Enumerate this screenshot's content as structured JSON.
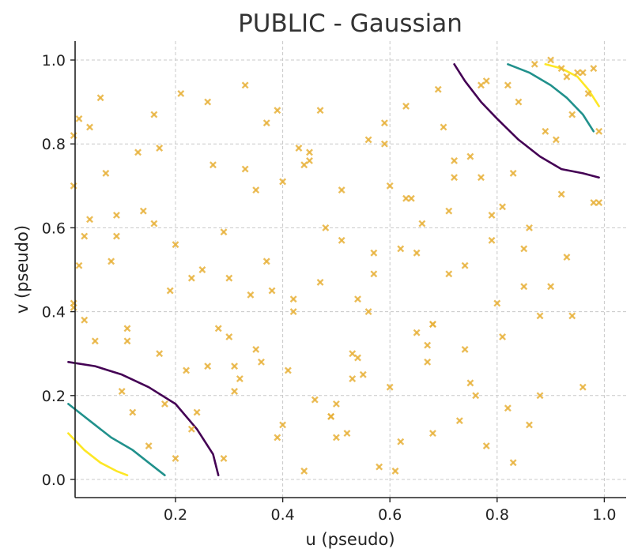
{
  "chart_data": {
    "type": "scatter",
    "title": "PUBLIC - Gaussian",
    "xlabel": "u (pseudo)",
    "ylabel": "v (pseudo)",
    "xlim": [
      0.0,
      1.05
    ],
    "ylim": [
      -0.04,
      1.05
    ],
    "xticks": [
      0.2,
      0.4,
      0.6,
      0.8,
      1.0
    ],
    "yticks": [
      0.0,
      0.2,
      0.4,
      0.6,
      0.8,
      1.0
    ],
    "grid": true,
    "marker_color": "#E8B23C",
    "series": [
      {
        "type": "scatter",
        "marker": "x",
        "points": [
          [
            0.01,
            0.82
          ],
          [
            0.01,
            0.7
          ],
          [
            0.01,
            0.41
          ],
          [
            0.01,
            0.42
          ],
          [
            0.02,
            0.86
          ],
          [
            0.02,
            0.51
          ],
          [
            0.03,
            0.58
          ],
          [
            0.03,
            0.38
          ],
          [
            0.04,
            0.84
          ],
          [
            0.04,
            0.62
          ],
          [
            0.05,
            0.33
          ],
          [
            0.06,
            0.91
          ],
          [
            0.07,
            0.73
          ],
          [
            0.08,
            0.52
          ],
          [
            0.09,
            0.63
          ],
          [
            0.09,
            0.58
          ],
          [
            0.1,
            0.21
          ],
          [
            0.11,
            0.36
          ],
          [
            0.11,
            0.33
          ],
          [
            0.12,
            0.16
          ],
          [
            0.13,
            0.78
          ],
          [
            0.14,
            0.64
          ],
          [
            0.15,
            0.08
          ],
          [
            0.16,
            0.87
          ],
          [
            0.16,
            0.61
          ],
          [
            0.17,
            0.79
          ],
          [
            0.17,
            0.3
          ],
          [
            0.18,
            0.18
          ],
          [
            0.19,
            0.45
          ],
          [
            0.2,
            0.56
          ],
          [
            0.2,
            0.05
          ],
          [
            0.21,
            0.92
          ],
          [
            0.22,
            0.26
          ],
          [
            0.23,
            0.12
          ],
          [
            0.23,
            0.48
          ],
          [
            0.24,
            0.16
          ],
          [
            0.25,
            0.5
          ],
          [
            0.26,
            0.27
          ],
          [
            0.26,
            0.9
          ],
          [
            0.27,
            0.75
          ],
          [
            0.28,
            0.36
          ],
          [
            0.29,
            0.05
          ],
          [
            0.29,
            0.59
          ],
          [
            0.3,
            0.48
          ],
          [
            0.3,
            0.34
          ],
          [
            0.31,
            0.21
          ],
          [
            0.31,
            0.27
          ],
          [
            0.32,
            0.24
          ],
          [
            0.33,
            0.94
          ],
          [
            0.33,
            0.74
          ],
          [
            0.34,
            0.44
          ],
          [
            0.35,
            0.69
          ],
          [
            0.35,
            0.31
          ],
          [
            0.36,
            0.28
          ],
          [
            0.37,
            0.52
          ],
          [
            0.37,
            0.85
          ],
          [
            0.38,
            0.45
          ],
          [
            0.39,
            0.88
          ],
          [
            0.39,
            0.1
          ],
          [
            0.4,
            0.71
          ],
          [
            0.4,
            0.13
          ],
          [
            0.41,
            0.26
          ],
          [
            0.42,
            0.43
          ],
          [
            0.42,
            0.4
          ],
          [
            0.43,
            0.79
          ],
          [
            0.44,
            0.02
          ],
          [
            0.44,
            0.75
          ],
          [
            0.45,
            0.78
          ],
          [
            0.45,
            0.76
          ],
          [
            0.46,
            0.19
          ],
          [
            0.47,
            0.88
          ],
          [
            0.47,
            0.47
          ],
          [
            0.48,
            0.6
          ],
          [
            0.49,
            0.15
          ],
          [
            0.49,
            0.15
          ],
          [
            0.5,
            0.18
          ],
          [
            0.5,
            0.1
          ],
          [
            0.51,
            0.57
          ],
          [
            0.51,
            0.69
          ],
          [
            0.52,
            0.11
          ],
          [
            0.53,
            0.24
          ],
          [
            0.53,
            0.3
          ],
          [
            0.54,
            0.43
          ],
          [
            0.54,
            0.29
          ],
          [
            0.55,
            0.25
          ],
          [
            0.56,
            0.81
          ],
          [
            0.56,
            0.4
          ],
          [
            0.57,
            0.54
          ],
          [
            0.57,
            0.49
          ],
          [
            0.58,
            0.03
          ],
          [
            0.59,
            0.85
          ],
          [
            0.59,
            0.8
          ],
          [
            0.6,
            0.22
          ],
          [
            0.6,
            0.7
          ],
          [
            0.61,
            0.02
          ],
          [
            0.62,
            0.55
          ],
          [
            0.62,
            0.09
          ],
          [
            0.63,
            0.89
          ],
          [
            0.63,
            0.67
          ],
          [
            0.64,
            0.67
          ],
          [
            0.65,
            0.54
          ],
          [
            0.65,
            0.35
          ],
          [
            0.66,
            0.61
          ],
          [
            0.67,
            0.32
          ],
          [
            0.67,
            0.28
          ],
          [
            0.68,
            0.37
          ],
          [
            0.68,
            0.37
          ],
          [
            0.68,
            0.11
          ],
          [
            0.69,
            0.93
          ],
          [
            0.7,
            0.84
          ],
          [
            0.71,
            0.64
          ],
          [
            0.71,
            0.49
          ],
          [
            0.72,
            0.76
          ],
          [
            0.72,
            0.72
          ],
          [
            0.73,
            0.14
          ],
          [
            0.74,
            0.51
          ],
          [
            0.74,
            0.31
          ],
          [
            0.75,
            0.23
          ],
          [
            0.75,
            0.77
          ],
          [
            0.76,
            0.2
          ],
          [
            0.77,
            0.72
          ],
          [
            0.77,
            0.94
          ],
          [
            0.78,
            0.95
          ],
          [
            0.78,
            0.08
          ],
          [
            0.79,
            0.57
          ],
          [
            0.79,
            0.63
          ],
          [
            0.8,
            0.42
          ],
          [
            0.81,
            0.65
          ],
          [
            0.81,
            0.34
          ],
          [
            0.82,
            0.94
          ],
          [
            0.82,
            0.17
          ],
          [
            0.83,
            0.04
          ],
          [
            0.83,
            0.73
          ],
          [
            0.84,
            0.9
          ],
          [
            0.85,
            0.55
          ],
          [
            0.85,
            0.46
          ],
          [
            0.86,
            0.13
          ],
          [
            0.86,
            0.6
          ],
          [
            0.87,
            0.99
          ],
          [
            0.88,
            0.39
          ],
          [
            0.88,
            0.2
          ],
          [
            0.89,
            0.83
          ],
          [
            0.9,
            1.0
          ],
          [
            0.9,
            0.46
          ],
          [
            0.91,
            0.81
          ],
          [
            0.92,
            0.68
          ],
          [
            0.92,
            0.98
          ],
          [
            0.93,
            0.53
          ],
          [
            0.93,
            0.96
          ],
          [
            0.94,
            0.87
          ],
          [
            0.94,
            0.39
          ],
          [
            0.95,
            0.97
          ],
          [
            0.96,
            0.97
          ],
          [
            0.96,
            0.22
          ],
          [
            0.97,
            0.92
          ],
          [
            0.98,
            0.66
          ],
          [
            0.98,
            0.98
          ],
          [
            0.99,
            0.83
          ],
          [
            0.99,
            0.66
          ]
        ]
      },
      {
        "type": "line",
        "color": "#440154",
        "segments": [
          [
            [
              0.0,
              0.28
            ],
            [
              0.05,
              0.27
            ],
            [
              0.1,
              0.25
            ],
            [
              0.15,
              0.22
            ],
            [
              0.2,
              0.18
            ],
            [
              0.24,
              0.12
            ],
            [
              0.27,
              0.06
            ],
            [
              0.28,
              0.01
            ]
          ],
          [
            [
              0.72,
              0.99
            ],
            [
              0.74,
              0.95
            ],
            [
              0.77,
              0.9
            ],
            [
              0.8,
              0.86
            ],
            [
              0.84,
              0.81
            ],
            [
              0.88,
              0.77
            ],
            [
              0.92,
              0.74
            ],
            [
              0.96,
              0.73
            ],
            [
              0.99,
              0.72
            ]
          ]
        ]
      },
      {
        "type": "line",
        "color": "#21918c",
        "segments": [
          [
            [
              0.0,
              0.18
            ],
            [
              0.04,
              0.14
            ],
            [
              0.08,
              0.1
            ],
            [
              0.12,
              0.07
            ],
            [
              0.15,
              0.04
            ],
            [
              0.18,
              0.01
            ]
          ],
          [
            [
              0.82,
              0.99
            ],
            [
              0.86,
              0.97
            ],
            [
              0.9,
              0.94
            ],
            [
              0.93,
              0.91
            ],
            [
              0.96,
              0.87
            ],
            [
              0.98,
              0.83
            ]
          ]
        ]
      },
      {
        "type": "line",
        "color": "#fde725",
        "segments": [
          [
            [
              0.0,
              0.11
            ],
            [
              0.03,
              0.07
            ],
            [
              0.06,
              0.04
            ],
            [
              0.09,
              0.02
            ],
            [
              0.11,
              0.01
            ]
          ],
          [
            [
              0.89,
              0.99
            ],
            [
              0.92,
              0.98
            ],
            [
              0.95,
              0.96
            ],
            [
              0.97,
              0.93
            ],
            [
              0.99,
              0.89
            ]
          ]
        ]
      }
    ]
  }
}
